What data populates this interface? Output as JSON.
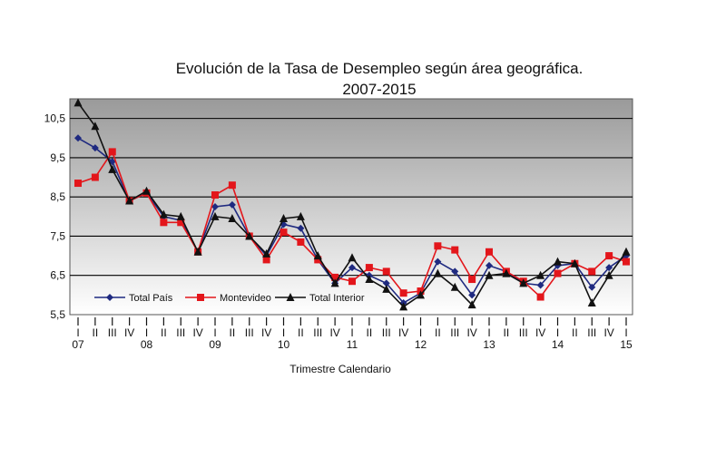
{
  "chart_data": {
    "type": "line",
    "title": "Evolución de la Tasa de Desempleo según área geográfica.",
    "subtitle": "2007-2015",
    "xlabel": "Trimestre Calendario",
    "ylabel": "",
    "ylim": [
      5.5,
      11.0
    ],
    "yticks": [
      5.5,
      6.5,
      7.5,
      8.5,
      9.5,
      10.5
    ],
    "ytick_labels": [
      "5,5",
      "6,5",
      "7,5",
      "8,5",
      "9,5",
      "10,5"
    ],
    "grid": true,
    "legend_position": "bottom-left",
    "quarter_labels": [
      "I",
      "II",
      "III",
      "IV",
      "I",
      "II",
      "III",
      "IV",
      "I",
      "II",
      "III",
      "IV",
      "I",
      "II",
      "III",
      "IV",
      "I",
      "II",
      "III",
      "IV",
      "I",
      "II",
      "III",
      "IV",
      "I",
      "II",
      "III",
      "IV",
      "I",
      "II",
      "III",
      "IV",
      "I"
    ],
    "year_labels": [
      {
        "label": "07",
        "index": 0
      },
      {
        "label": "08",
        "index": 4
      },
      {
        "label": "09",
        "index": 8
      },
      {
        "label": "10",
        "index": 12
      },
      {
        "label": "11",
        "index": 16
      },
      {
        "label": "12",
        "index": 20
      },
      {
        "label": "13",
        "index": 24
      },
      {
        "label": "14",
        "index": 28
      },
      {
        "label": "15",
        "index": 32
      }
    ],
    "series": [
      {
        "name": "Total País",
        "color": "#1f2a80",
        "marker": "diamond",
        "values": [
          10.0,
          9.75,
          9.4,
          8.4,
          8.6,
          8.0,
          7.9,
          7.1,
          8.25,
          8.3,
          7.5,
          7.0,
          7.8,
          7.7,
          6.9,
          6.3,
          6.7,
          6.5,
          6.3,
          5.8,
          6.05,
          6.85,
          6.6,
          6.0,
          6.75,
          6.6,
          6.3,
          6.25,
          6.75,
          6.8,
          6.2,
          6.7,
          7.0
        ]
      },
      {
        "name": "Montevideo",
        "color": "#e3161b",
        "marker": "square",
        "values": [
          8.85,
          9.0,
          9.65,
          8.4,
          8.6,
          7.85,
          7.85,
          7.1,
          8.55,
          8.8,
          7.5,
          6.9,
          7.6,
          7.35,
          6.9,
          6.45,
          6.35,
          6.7,
          6.6,
          6.05,
          6.1,
          7.25,
          7.15,
          6.4,
          7.1,
          6.6,
          6.35,
          5.95,
          6.55,
          6.8,
          6.6,
          7.0,
          6.85
        ]
      },
      {
        "name": "Total Interior",
        "color": "#111111",
        "marker": "triangle",
        "values": [
          10.9,
          10.3,
          9.2,
          8.4,
          8.65,
          8.05,
          8.0,
          7.1,
          8.0,
          7.95,
          7.5,
          7.05,
          7.95,
          8.0,
          7.0,
          6.3,
          6.95,
          6.4,
          6.15,
          5.7,
          6.0,
          6.55,
          6.2,
          5.75,
          6.5,
          6.55,
          6.3,
          6.5,
          6.85,
          6.8,
          5.8,
          6.5,
          7.1
        ]
      }
    ]
  },
  "colors": {
    "plot_top": "#9a9a9a",
    "plot_bottom": "#ffffff",
    "gridline": "#000000"
  }
}
